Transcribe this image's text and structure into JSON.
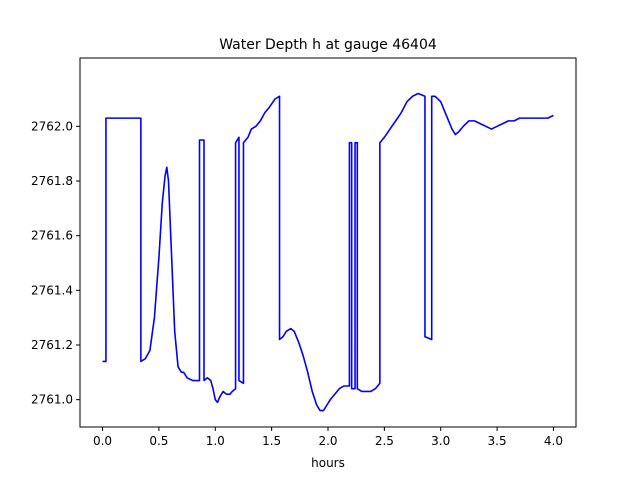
{
  "chart_data": {
    "type": "line",
    "title": "Water Depth h at gauge 46404",
    "xlabel": "hours",
    "ylabel": "",
    "xlim": [
      -0.2,
      4.2
    ],
    "ylim": [
      2760.9,
      2762.25
    ],
    "xticks": [
      0.0,
      0.5,
      1.0,
      1.5,
      2.0,
      2.5,
      3.0,
      3.5,
      4.0
    ],
    "xtick_labels": [
      "0.0",
      "0.5",
      "1.0",
      "1.5",
      "2.0",
      "2.5",
      "3.0",
      "3.5",
      "4.0"
    ],
    "yticks": [
      2761.0,
      2761.2,
      2761.4,
      2761.6,
      2761.8,
      2762.0
    ],
    "ytick_labels": [
      "2761.0",
      "2761.2",
      "2761.4",
      "2761.6",
      "2761.8",
      "2762.0"
    ],
    "grid": false,
    "legend": "none",
    "series": [
      {
        "color": "#0000ff",
        "points": [
          [
            0.0,
            2761.14
          ],
          [
            0.03,
            2761.14
          ],
          [
            0.03,
            2762.03
          ],
          [
            0.34,
            2762.03
          ],
          [
            0.34,
            2761.14
          ],
          [
            0.38,
            2761.15
          ],
          [
            0.42,
            2761.18
          ],
          [
            0.46,
            2761.3
          ],
          [
            0.5,
            2761.52
          ],
          [
            0.53,
            2761.72
          ],
          [
            0.555,
            2761.82
          ],
          [
            0.57,
            2761.85
          ],
          [
            0.585,
            2761.8
          ],
          [
            0.61,
            2761.55
          ],
          [
            0.64,
            2761.25
          ],
          [
            0.67,
            2761.12
          ],
          [
            0.7,
            2761.1
          ],
          [
            0.72,
            2761.1
          ],
          [
            0.75,
            2761.08
          ],
          [
            0.8,
            2761.07
          ],
          [
            0.86,
            2761.07
          ],
          [
            0.86,
            2761.95
          ],
          [
            0.9,
            2761.95
          ],
          [
            0.9,
            2761.07
          ],
          [
            0.93,
            2761.08
          ],
          [
            0.96,
            2761.07
          ],
          [
            0.98,
            2761.04
          ],
          [
            1.0,
            2761.0
          ],
          [
            1.02,
            2760.99
          ],
          [
            1.04,
            2761.01
          ],
          [
            1.07,
            2761.03
          ],
          [
            1.1,
            2761.02
          ],
          [
            1.13,
            2761.02
          ],
          [
            1.15,
            2761.03
          ],
          [
            1.18,
            2761.04
          ],
          [
            1.18,
            2761.94
          ],
          [
            1.21,
            2761.96
          ],
          [
            1.21,
            2761.07
          ],
          [
            1.25,
            2761.06
          ],
          [
            1.25,
            2761.94
          ],
          [
            1.29,
            2761.96
          ],
          [
            1.32,
            2761.99
          ],
          [
            1.36,
            2762.0
          ],
          [
            1.4,
            2762.02
          ],
          [
            1.44,
            2762.05
          ],
          [
            1.48,
            2762.07
          ],
          [
            1.53,
            2762.1
          ],
          [
            1.57,
            2762.11
          ],
          [
            1.57,
            2761.22
          ],
          [
            1.6,
            2761.23
          ],
          [
            1.63,
            2761.25
          ],
          [
            1.67,
            2761.26
          ],
          [
            1.7,
            2761.25
          ],
          [
            1.74,
            2761.21
          ],
          [
            1.78,
            2761.16
          ],
          [
            1.82,
            2761.1
          ],
          [
            1.86,
            2761.03
          ],
          [
            1.9,
            2760.98
          ],
          [
            1.93,
            2760.96
          ],
          [
            1.96,
            2760.96
          ],
          [
            1.99,
            2760.98
          ],
          [
            2.02,
            2761.0
          ],
          [
            2.06,
            2761.02
          ],
          [
            2.1,
            2761.04
          ],
          [
            2.14,
            2761.05
          ],
          [
            2.19,
            2761.05
          ],
          [
            2.19,
            2761.94
          ],
          [
            2.21,
            2761.94
          ],
          [
            2.21,
            2761.04
          ],
          [
            2.24,
            2761.04
          ],
          [
            2.24,
            2761.94
          ],
          [
            2.26,
            2761.94
          ],
          [
            2.26,
            2761.04
          ],
          [
            2.3,
            2761.03
          ],
          [
            2.34,
            2761.03
          ],
          [
            2.38,
            2761.03
          ],
          [
            2.42,
            2761.04
          ],
          [
            2.46,
            2761.06
          ],
          [
            2.46,
            2761.94
          ],
          [
            2.5,
            2761.96
          ],
          [
            2.55,
            2761.99
          ],
          [
            2.6,
            2762.02
          ],
          [
            2.65,
            2762.05
          ],
          [
            2.7,
            2762.09
          ],
          [
            2.75,
            2762.11
          ],
          [
            2.8,
            2762.12
          ],
          [
            2.86,
            2762.11
          ],
          [
            2.86,
            2761.23
          ],
          [
            2.92,
            2761.22
          ],
          [
            2.92,
            2762.11
          ],
          [
            2.95,
            2762.11
          ],
          [
            3.0,
            2762.09
          ],
          [
            3.05,
            2762.04
          ],
          [
            3.1,
            2761.99
          ],
          [
            3.13,
            2761.97
          ],
          [
            3.16,
            2761.98
          ],
          [
            3.2,
            2762.0
          ],
          [
            3.25,
            2762.02
          ],
          [
            3.3,
            2762.02
          ],
          [
            3.35,
            2762.01
          ],
          [
            3.4,
            2762.0
          ],
          [
            3.45,
            2761.99
          ],
          [
            3.5,
            2762.0
          ],
          [
            3.55,
            2762.01
          ],
          [
            3.6,
            2762.02
          ],
          [
            3.65,
            2762.02
          ],
          [
            3.7,
            2762.03
          ],
          [
            3.8,
            2762.03
          ],
          [
            3.9,
            2762.03
          ],
          [
            3.95,
            2762.03
          ],
          [
            4.0,
            2762.04
          ]
        ]
      }
    ]
  }
}
